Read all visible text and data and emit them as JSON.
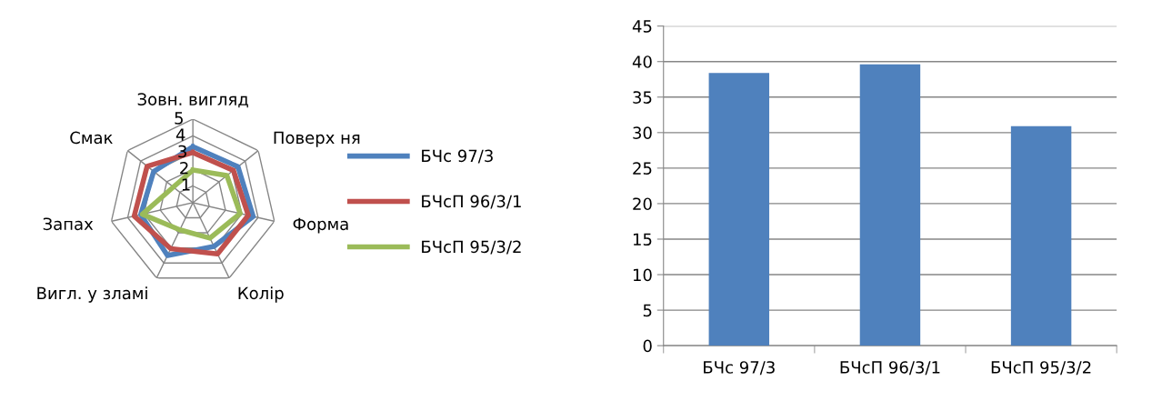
{
  "chart_data": [
    {
      "type": "radar",
      "categories": [
        "Зовн. вигляд",
        "Поверх ня",
        "Форма",
        "Колір",
        "Вигл. у зламі",
        "Запах",
        "Смак"
      ],
      "ylim": [
        0,
        5
      ],
      "yticks": [
        1,
        2,
        3,
        4,
        5
      ],
      "grid": true,
      "legend": "right",
      "series": [
        {
          "name": "БЧс 97/3",
          "color": "#4f81bd",
          "values": [
            3.35,
            3.45,
            3.7,
            2.9,
            3.5,
            3.2,
            3.0
          ]
        },
        {
          "name": "БЧсП 96/3/1",
          "color": "#c0504d",
          "values": [
            3.0,
            3.1,
            3.4,
            3.4,
            3.05,
            3.6,
            3.5
          ]
        },
        {
          "name": "БЧсП 95/3/2",
          "color": "#9bbb59",
          "values": [
            1.95,
            2.6,
            2.9,
            2.35,
            1.8,
            3.1,
            1.5
          ]
        }
      ]
    },
    {
      "type": "bar",
      "categories": [
        "БЧс 97/3",
        "БЧсП 96/3/1",
        "БЧсП 95/3/2"
      ],
      "values": [
        38.4,
        39.6,
        30.9
      ],
      "color": "#4f81bd",
      "ylim": [
        0,
        45
      ],
      "yticks": [
        0,
        5,
        10,
        15,
        20,
        25,
        30,
        35,
        40,
        45
      ],
      "grid": "y",
      "legend": false
    }
  ]
}
